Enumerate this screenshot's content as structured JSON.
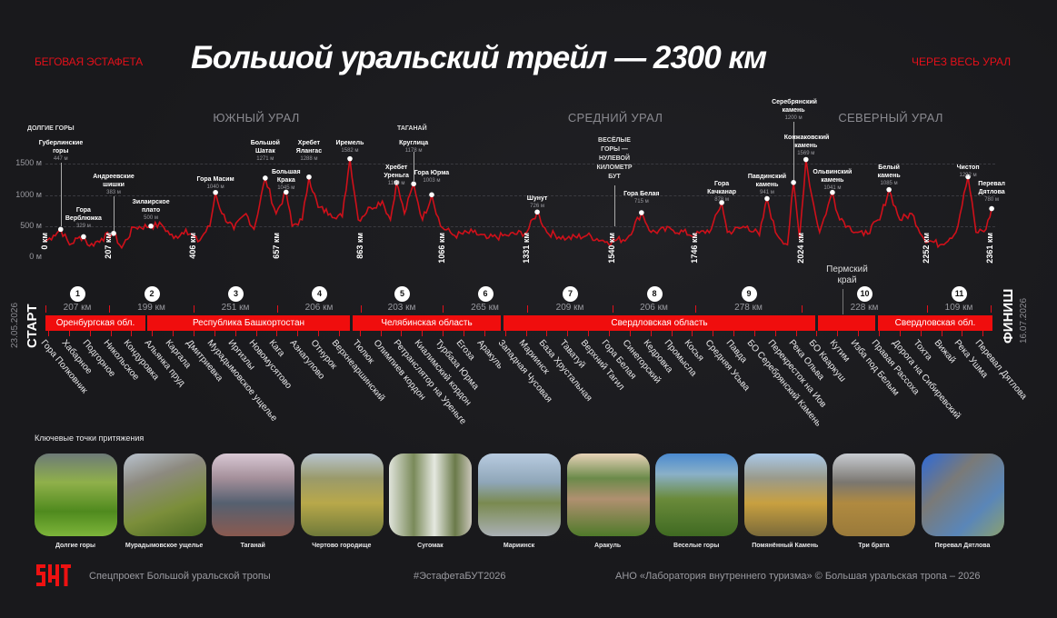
{
  "header": {
    "left_tag": "БЕГОВАЯ ЭСТАФЕТА",
    "title": "Большой уральский трейл — 2300 км",
    "right_tag": "ЧЕРЕЗ ВЕСЬ УРАЛ"
  },
  "regions": {
    "south": "ЮЖНЫЙ УРАЛ",
    "middle": "СРЕДНИЙ УРАЛ",
    "north": "СЕВЕРНЫЙ УРАЛ"
  },
  "colors": {
    "accent": "#f00d0d",
    "background": "#19191c",
    "profile": "#d0101a"
  },
  "chart_data": {
    "type": "line",
    "title": "Большой уральский трейл — 2300 км",
    "xlabel": "км",
    "ylabel": "м",
    "xlim": [
      0,
      2361
    ],
    "ylim": [
      0,
      1700
    ],
    "yticks": [
      "0 м",
      "500 м",
      "1000 м",
      "1500 м"
    ],
    "ytick_values": [
      0,
      500,
      1000,
      1500
    ],
    "grid": true,
    "group_labels": {
      "dolgie": "ДОЛГИЕ ГОРЫ",
      "taganay": "ТАГАНАЙ",
      "veselye": "ВЕСЁЛЫЕ ГОРЫ — НУЛЕВОЙ КИЛОМЕТР БУТ"
    },
    "peaks": [
      {
        "name": "Губерлинские горы",
        "elev": "447 м",
        "km": 38,
        "m": 447
      },
      {
        "name": "Гора Верблюжка",
        "elev": "329 м",
        "km": 95,
        "m": 329
      },
      {
        "name": "Андреевские шишки",
        "elev": "383 м",
        "km": 170,
        "m": 383
      },
      {
        "name": "Зилаирское плато",
        "elev": "500 м",
        "km": 263,
        "m": 500
      },
      {
        "name": "Гора Масим",
        "elev": "1040 м",
        "km": 424,
        "m": 1040
      },
      {
        "name": "Большой Шатак",
        "elev": "1271 м",
        "km": 548,
        "m": 1271
      },
      {
        "name": "Большая Крака",
        "elev": "1045 м",
        "km": 600,
        "m": 1045
      },
      {
        "name": "Хребет Ялангас",
        "elev": "1288 м",
        "km": 657,
        "m": 1288
      },
      {
        "name": "Иремель",
        "elev": "1582 м",
        "km": 759,
        "m": 1582
      },
      {
        "name": "Хребет Уреньга",
        "elev": "1199 м",
        "km": 875,
        "m": 1199
      },
      {
        "name": "Круглица",
        "elev": "1178 м",
        "km": 918,
        "m": 1178
      },
      {
        "name": "Гора Юрма",
        "elev": "1003 м",
        "km": 963,
        "m": 1003
      },
      {
        "name": "Шунут",
        "elev": "726 м",
        "km": 1226,
        "m": 726
      },
      {
        "name": "Гора Белая",
        "elev": "715 м",
        "km": 1486,
        "m": 715
      },
      {
        "name": "Гора Качканар",
        "elev": "878 м",
        "km": 1686,
        "m": 878
      },
      {
        "name": "Павдинский камень",
        "elev": "941 м",
        "km": 1799,
        "m": 941
      },
      {
        "name": "Серебрянский камень",
        "elev": "1200 м",
        "km": 1865,
        "m": 1200
      },
      {
        "name": "Конжаковский камень",
        "elev": "1569 м",
        "km": 1896,
        "m": 1569
      },
      {
        "name": "Ольвинский камень",
        "elev": "1041 м",
        "km": 1962,
        "m": 1041
      },
      {
        "name": "Белый камень",
        "elev": "1085 м",
        "km": 2103,
        "m": 1085
      },
      {
        "name": "Чистоп",
        "elev": "1292 м",
        "km": 2300,
        "m": 1292
      },
      {
        "name": "Перевал Дятлова",
        "elev": "780 м",
        "km": 2359,
        "m": 780
      }
    ],
    "profile": [
      [
        0,
        250
      ],
      [
        20,
        350
      ],
      [
        38,
        447
      ],
      [
        60,
        200
      ],
      [
        80,
        300
      ],
      [
        95,
        329
      ],
      [
        110,
        180
      ],
      [
        140,
        300
      ],
      [
        170,
        383
      ],
      [
        190,
        150
      ],
      [
        220,
        480
      ],
      [
        263,
        500
      ],
      [
        290,
        520
      ],
      [
        320,
        300
      ],
      [
        350,
        450
      ],
      [
        380,
        250
      ],
      [
        410,
        500
      ],
      [
        424,
        1040
      ],
      [
        440,
        700
      ],
      [
        470,
        450
      ],
      [
        500,
        700
      ],
      [
        520,
        450
      ],
      [
        548,
        1271
      ],
      [
        575,
        700
      ],
      [
        600,
        1045
      ],
      [
        615,
        500
      ],
      [
        640,
        600
      ],
      [
        657,
        1288
      ],
      [
        680,
        800
      ],
      [
        710,
        700
      ],
      [
        740,
        650
      ],
      [
        759,
        1582
      ],
      [
        780,
        600
      ],
      [
        810,
        800
      ],
      [
        840,
        900
      ],
      [
        860,
        600
      ],
      [
        875,
        1199
      ],
      [
        895,
        700
      ],
      [
        918,
        1178
      ],
      [
        940,
        600
      ],
      [
        963,
        1003
      ],
      [
        985,
        500
      ],
      [
        1020,
        350
      ],
      [
        1066,
        400
      ],
      [
        1100,
        300
      ],
      [
        1150,
        350
      ],
      [
        1200,
        400
      ],
      [
        1226,
        726
      ],
      [
        1250,
        400
      ],
      [
        1300,
        300
      ],
      [
        1350,
        350
      ],
      [
        1400,
        250
      ],
      [
        1450,
        300
      ],
      [
        1486,
        715
      ],
      [
        1510,
        400
      ],
      [
        1560,
        450
      ],
      [
        1620,
        350
      ],
      [
        1660,
        450
      ],
      [
        1686,
        878
      ],
      [
        1700,
        400
      ],
      [
        1750,
        500
      ],
      [
        1780,
        350
      ],
      [
        1799,
        941
      ],
      [
        1820,
        400
      ],
      [
        1850,
        200
      ],
      [
        1865,
        1200
      ],
      [
        1880,
        300
      ],
      [
        1896,
        1569
      ],
      [
        1910,
        1000
      ],
      [
        1930,
        400
      ],
      [
        1962,
        1041
      ],
      [
        1975,
        700
      ],
      [
        2000,
        500
      ],
      [
        2040,
        350
      ],
      [
        2080,
        600
      ],
      [
        2103,
        1085
      ],
      [
        2130,
        600
      ],
      [
        2160,
        700
      ],
      [
        2190,
        300
      ],
      [
        2230,
        200
      ],
      [
        2270,
        400
      ],
      [
        2300,
        1292
      ],
      [
        2320,
        400
      ],
      [
        2345,
        450
      ],
      [
        2359,
        780
      ]
    ]
  },
  "timeline": {
    "start": "СТАРТ",
    "start_date": "23.05.2026",
    "finish": "ФИНИШ",
    "finish_date": "16.07.2026",
    "km_markers": [
      "0 км",
      "207 км",
      "406 км",
      "657 км",
      "863 км",
      "1066 км",
      "1331 км",
      "1540 км",
      "1746 км",
      "2024 км",
      "2252 км",
      "2361 км"
    ],
    "stages": [
      {
        "n": "1",
        "d": "207 км"
      },
      {
        "n": "2",
        "d": "199 км"
      },
      {
        "n": "3",
        "d": "251 км"
      },
      {
        "n": "4",
        "d": "206 км"
      },
      {
        "n": "5",
        "d": "203 км"
      },
      {
        "n": "6",
        "d": "265 км"
      },
      {
        "n": "7",
        "d": "209 км"
      },
      {
        "n": "8",
        "d": "206 км"
      },
      {
        "n": "9",
        "d": "278 км"
      },
      {
        "n": "10",
        "d": "228 км"
      },
      {
        "n": "11",
        "d": "109 км"
      }
    ],
    "segments": [
      "Оренбургская обл.",
      "Республика Башкортостан",
      "Челябинская область",
      "Свердловская область",
      "",
      "Свердловская обл."
    ],
    "perm_label": "Пермский край",
    "locations": [
      "Гора Полковник",
      "Хабарное",
      "Подгорное",
      "Никольское",
      "Кондуровка",
      "Альянка пруд",
      "Каргала",
      "Дмитриевка",
      "Мурадымовское ущелье",
      "Иргизлы",
      "Новомусятово",
      "Кага",
      "Азнагулово",
      "Отнурок",
      "Верхнеаршинский",
      "Тюлюк",
      "Олимпиев кордон",
      "Ретранслятор на Уреньге",
      "Киалимский кордон",
      "Турбаза Юрма",
      "Егоза",
      "Аракуль",
      "Западная Чусовая",
      "Мариинск",
      "База Хрустальная",
      "Таватуй",
      "Верхний Тагил",
      "Гора Белая",
      "Синегорский",
      "Кедровка",
      "Промысла",
      "Косья",
      "Средняя Усьва",
      "Павда",
      "БО Серебрянский Камень",
      "Перекресток на Иов",
      "Река Ольва",
      "БО Кваркуш",
      "Кутим",
      "Изба под Белым",
      "Правая Рассоха",
      "Дорога на Сибиревский",
      "Тохта",
      "Вижай",
      "Река Ушма",
      "Перевал Дятлова"
    ]
  },
  "attractions": {
    "title": "Ключевые точки притяжения",
    "items": [
      "Долгие горы",
      "Мурадымовское ущелье",
      "Таганай",
      "Чертово городище",
      "Сугомак",
      "Мариинск",
      "Аракуль",
      "Веселые горы",
      "Помянённый Камень",
      "Три брата",
      "Перевал Дятлова"
    ]
  },
  "footer": {
    "logo": "БУТ",
    "project": "Спецпроект Большой уральской тропы",
    "hashtag": "#ЭстафетаБУТ2026",
    "copyright": "АНО «Лаборатория внутреннего туризма» © Большая уральская тропа – 2026"
  }
}
